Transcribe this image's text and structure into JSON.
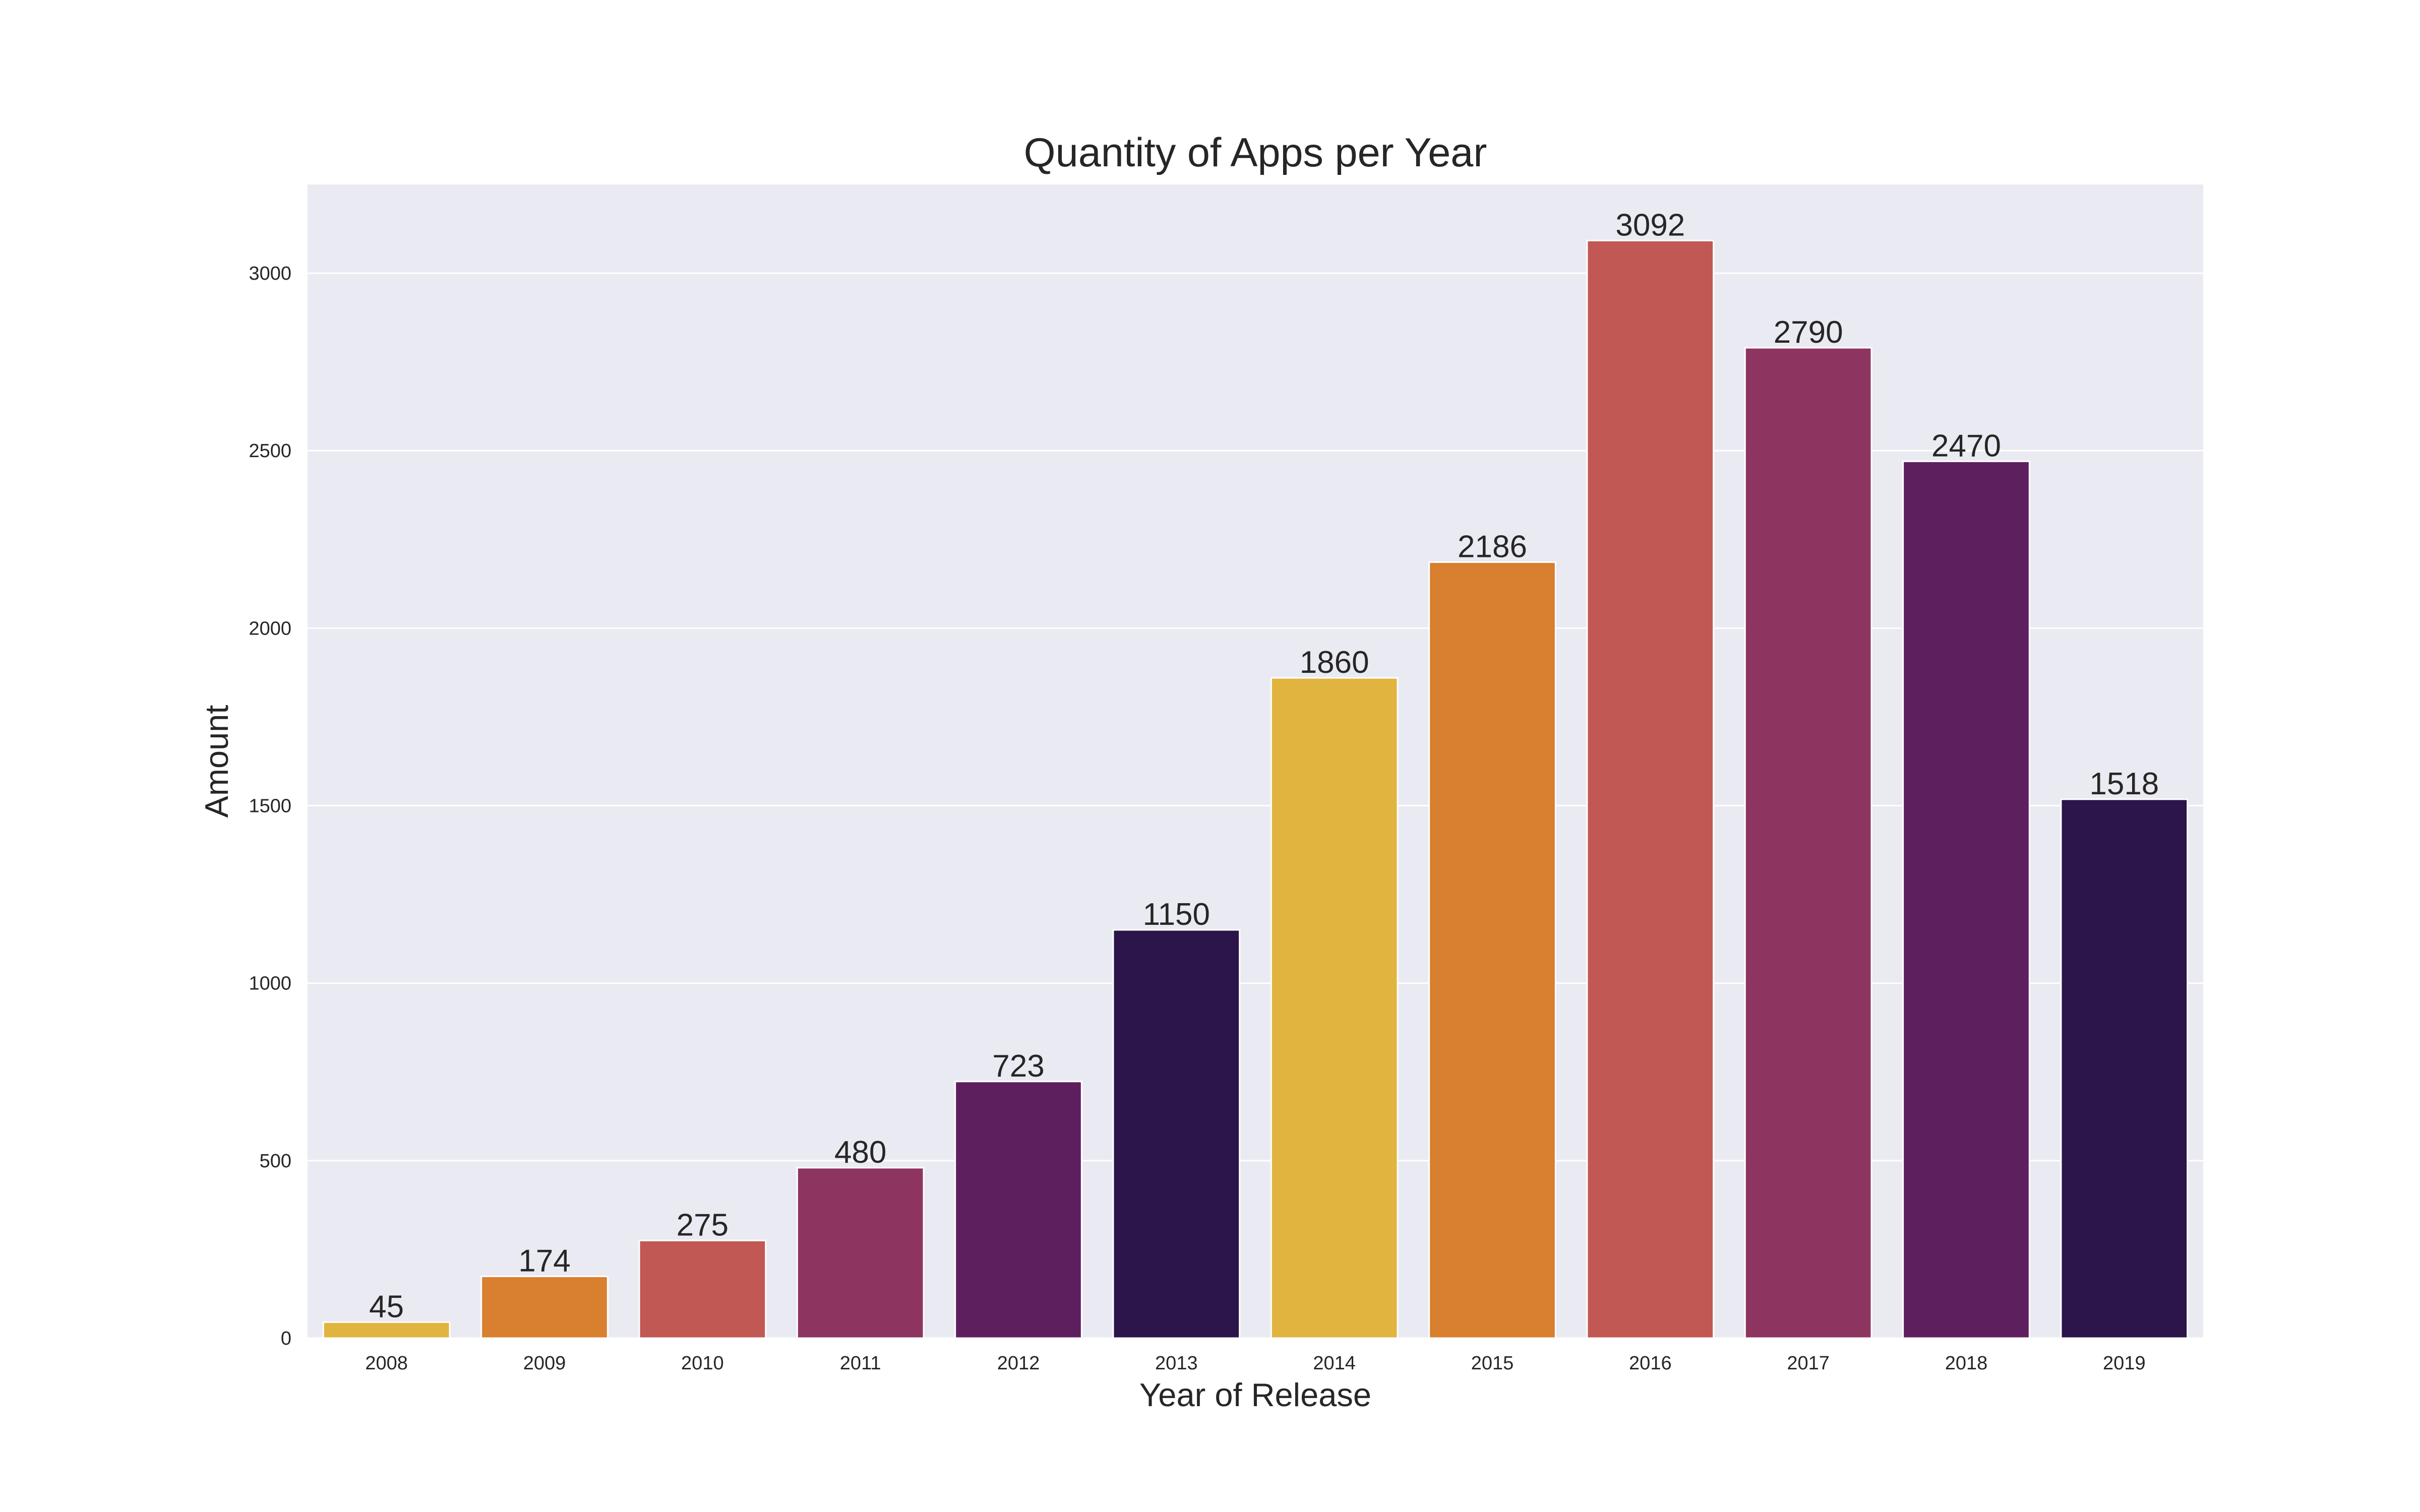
{
  "chart_data": {
    "type": "bar",
    "title": "Quantity of Apps per Year",
    "xlabel": "Year of Release",
    "ylabel": "Amount",
    "categories": [
      "2008",
      "2009",
      "2010",
      "2011",
      "2012",
      "2013",
      "2014",
      "2015",
      "2016",
      "2017",
      "2018",
      "2019"
    ],
    "values": [
      45,
      174,
      275,
      480,
      723,
      1150,
      1860,
      2186,
      3092,
      2790,
      2470,
      1518
    ],
    "data_labels": [
      "45",
      "174",
      "275",
      "480",
      "723",
      "1150",
      "1860",
      "2186",
      "3092",
      "2790",
      "2470",
      "1518"
    ],
    "colors": [
      "#e0b43f",
      "#d97f30",
      "#c15853",
      "#8e3461",
      "#5e1f5f",
      "#2b154a",
      "#e0b43f",
      "#d97f30",
      "#c15853",
      "#8e3461",
      "#5e1f5f",
      "#2b154a"
    ],
    "yticks": [
      0,
      500,
      1000,
      1500,
      2000,
      2500,
      3000
    ],
    "ytick_labels": [
      "0",
      "500",
      "1000",
      "1500",
      "2000",
      "2500",
      "3000"
    ],
    "ylim": [
      0,
      3250
    ],
    "grid": true,
    "legend": false,
    "background_color": "#eaeaf2",
    "grid_color": "#ffffff"
  }
}
